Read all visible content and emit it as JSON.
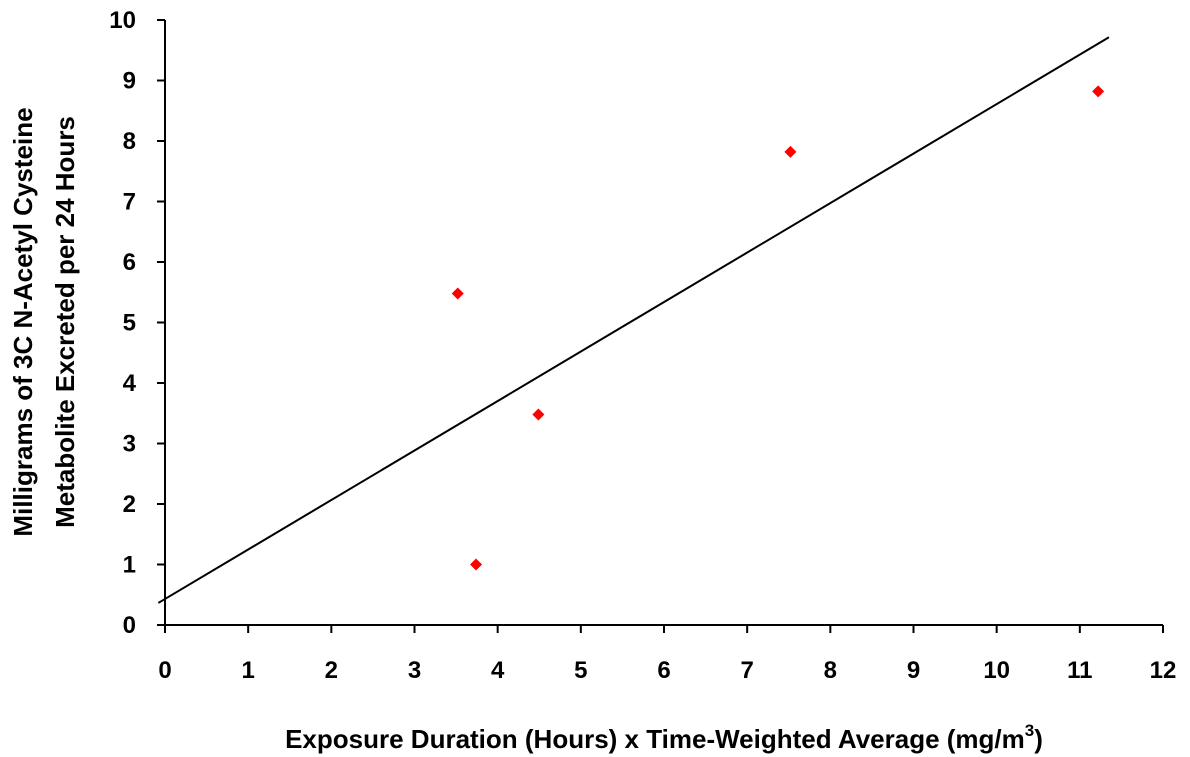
{
  "chart_data": {
    "type": "scatter",
    "title": "",
    "xlabel": "Exposure Duration (Hours) x Time-Weighted Average (mg/m",
    "xlabel_superscript": "3",
    "xlabel_suffix": ")",
    "ylabel_line1": "Milligrams of 3C N-Acetyl Cysteine",
    "ylabel_line2": "Metabolite Excreted per 24 Hours",
    "xlim": [
      0,
      12
    ],
    "ylim": [
      0,
      10
    ],
    "x_ticks": [
      "0",
      "1",
      "2",
      "3",
      "4",
      "5",
      "6",
      "7",
      "8",
      "9",
      "10",
      "11",
      "12"
    ],
    "y_ticks": [
      "0",
      "1",
      "2",
      "3",
      "4",
      "5",
      "6",
      "7",
      "8",
      "9",
      "10"
    ],
    "grid": false,
    "legend": "none",
    "series": [
      {
        "marker": "diamond",
        "color": "#ff0000",
        "points": [
          {
            "x": 3.52,
            "y": 5.48
          },
          {
            "x": 3.74,
            "y": 1.0
          },
          {
            "x": 4.49,
            "y": 3.48
          },
          {
            "x": 7.52,
            "y": 7.82
          },
          {
            "x": 11.22,
            "y": 8.82
          }
        ]
      }
    ],
    "trendline": {
      "type": "linear",
      "color": "#000000",
      "x_range": [
        -0.08,
        11.35
      ],
      "slope": 0.818,
      "intercept": 0.43
    }
  }
}
